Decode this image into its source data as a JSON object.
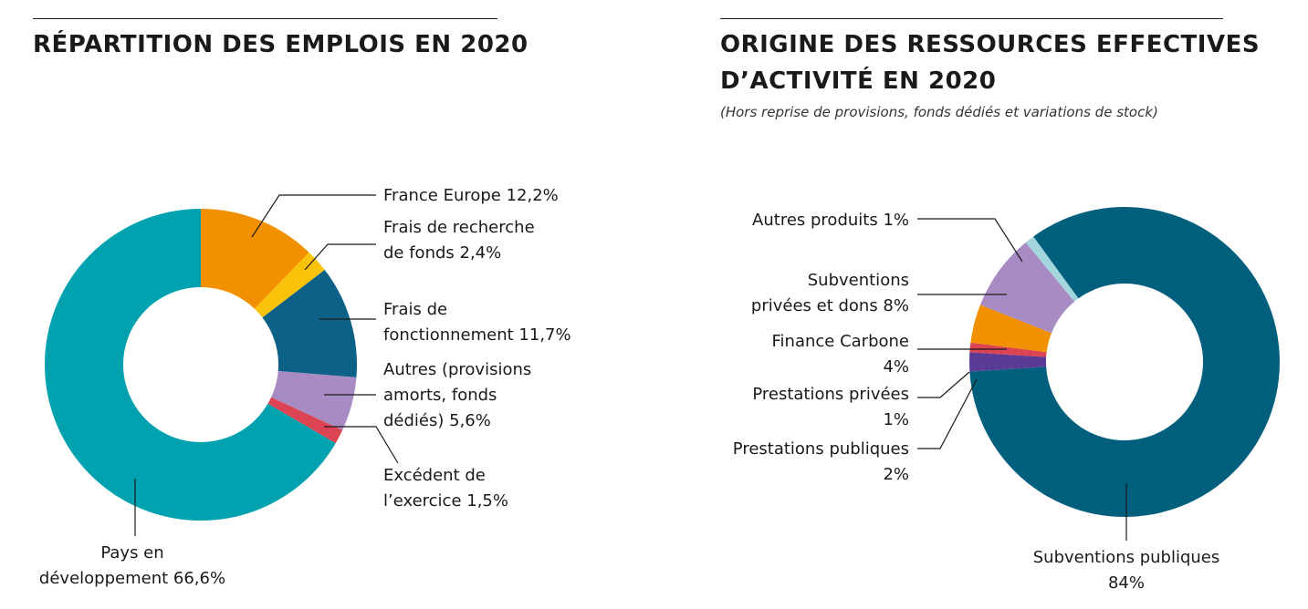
{
  "left": {
    "title": "RÉPARTITION DES EMPLOIS EN 2020",
    "chart_data": {
      "type": "pie",
      "title": "RÉPARTITION DES EMPLOIS EN 2020",
      "slices": [
        {
          "name": "France Europe",
          "value": 12.2,
          "color": "#F29100",
          "label_lines": [
            "France Europe 12,2%"
          ]
        },
        {
          "name": "Frais de recherche de fonds",
          "value": 2.4,
          "color": "#FBC20A",
          "label_lines": [
            "Frais de recherche",
            "de fonds 2,4%"
          ]
        },
        {
          "name": "Frais de fonctionnement",
          "value": 11.7,
          "color": "#0E6186",
          "label_lines": [
            "Frais de",
            "fonctionnement 11,7%"
          ]
        },
        {
          "name": "Autres (provisions amorts, fonds dédiés)",
          "value": 5.6,
          "color": "#A88BC2",
          "label_lines": [
            "Autres (provisions",
            "amorts, fonds",
            "dédiés) 5,6%"
          ]
        },
        {
          "name": "Excédent de l'exercice",
          "value": 1.5,
          "color": "#DC4454",
          "label_lines": [
            "Excédent de",
            "l’exercice 1,5%"
          ]
        },
        {
          "name": "Pays en développement",
          "value": 66.6,
          "color": "#00A2B0",
          "label_lines": [
            "Pays en",
            "développement 66,6%"
          ]
        }
      ]
    }
  },
  "right": {
    "title_lines": [
      "ORIGINE DES RESSOURCES EFFECTIVES",
      "D’ACTIVITÉ EN 2020"
    ],
    "subtitle": "(Hors reprise de provisions, fonds dédiés et variations de stock)",
    "chart_data": {
      "type": "pie",
      "title": "ORIGINE DES RESSOURCES EFFECTIVES D’ACTIVITÉ EN 2020",
      "subtitle": "(Hors reprise de provisions, fonds dédiés et variations de stock)",
      "slices": [
        {
          "name": "Subventions publiques",
          "value": 84,
          "color": "#005F7D",
          "label_lines": [
            "Subventions publiques",
            "84%"
          ]
        },
        {
          "name": "Prestations publiques",
          "value": 2,
          "color": "#5A3B96",
          "label_lines": [
            "Prestations publiques",
            "2%"
          ]
        },
        {
          "name": "Prestations privées",
          "value": 1,
          "color": "#DC4454",
          "label_lines": [
            "Prestations privées",
            "1%"
          ]
        },
        {
          "name": "Finance Carbone",
          "value": 4,
          "color": "#F29100",
          "label_lines": [
            "Finance Carbone",
            "4%"
          ]
        },
        {
          "name": "Subventions privées et dons",
          "value": 8,
          "color": "#A88BC2",
          "label_lines": [
            "Subventions",
            "privées et dons 8%"
          ]
        },
        {
          "name": "Autres produits",
          "value": 1,
          "color": "#A3D5DC",
          "label_lines": [
            "Autres produits 1%"
          ]
        }
      ]
    }
  }
}
